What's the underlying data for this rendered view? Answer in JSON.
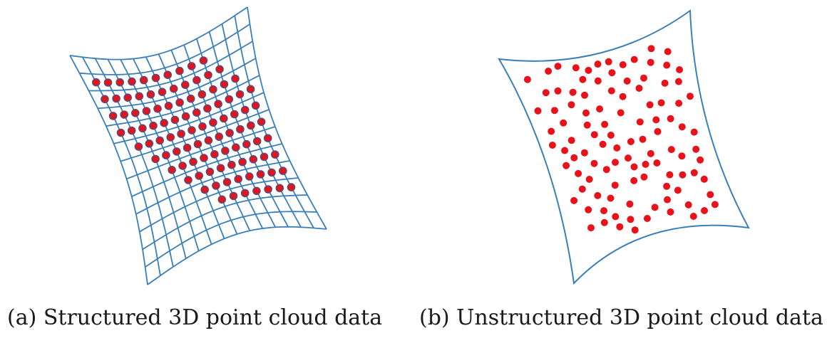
{
  "captions": {
    "structured": "(a) Structured 3D point cloud data",
    "unstructured": "(b) Unstructured 3D point cloud data"
  },
  "colors": {
    "mesh_line": "#3a7fb8",
    "point_fill": "#e8121a",
    "point_core": "#5a4a78"
  },
  "panels": {
    "structured": {
      "grid_rows": 13,
      "grid_cols": 14,
      "point_rows": 10
    },
    "unstructured": {
      "point_count": 105
    }
  }
}
